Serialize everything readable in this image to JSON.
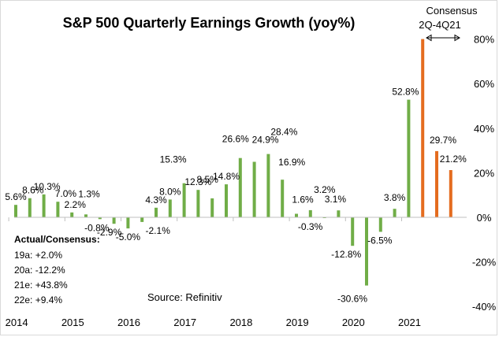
{
  "chart_data": {
    "type": "bar",
    "title": "S&P 500 Quarterly Earnings Growth (yoy%)",
    "xlabel": "",
    "ylabel": "",
    "ylim": [
      -40,
      80
    ],
    "y_ticks": [
      -40,
      -20,
      0,
      20,
      40,
      60,
      80
    ],
    "y_tick_labels": [
      "-40%",
      "-20%",
      "0%",
      "20%",
      "40%",
      "60%",
      "80%"
    ],
    "y_axis_position": "right",
    "grid": false,
    "x_tick_labels": [
      "2014",
      "2015",
      "2016",
      "2017",
      "2018",
      "2019",
      "2020",
      "2021"
    ],
    "series": [
      {
        "name": "Actual",
        "color": "#70ad47",
        "points": [
          {
            "q": "1Q14",
            "value": 5.6,
            "label": "5.6%"
          },
          {
            "q": "2Q14",
            "value": 8.6,
            "label": "8.6%"
          },
          {
            "q": "3Q14",
            "value": 10.3,
            "label": "10.3%"
          },
          {
            "q": "4Q14",
            "value": 7.0,
            "label": "7.0%"
          },
          {
            "q": "1Q15",
            "value": 2.2,
            "label": "2.2%"
          },
          {
            "q": "2Q15",
            "value": 1.3,
            "label": "1.3%"
          },
          {
            "q": "3Q15",
            "value": -0.8,
            "label": "-0.8%"
          },
          {
            "q": "4Q15",
            "value": -2.9,
            "label": "-2.9%"
          },
          {
            "q": "1Q16",
            "value": -5.0,
            "label": "-5.0%"
          },
          {
            "q": "2Q16",
            "value": -2.1,
            "label": "-2.1%"
          },
          {
            "q": "3Q16",
            "value": 4.3,
            "label": "4.3%"
          },
          {
            "q": "4Q16",
            "value": 8.0,
            "label": "8.0%"
          },
          {
            "q": "1Q17",
            "value": 15.3,
            "label": "15.3%"
          },
          {
            "q": "2Q17",
            "value": 12.3,
            "label": "12.3%"
          },
          {
            "q": "3Q17",
            "value": 8.5,
            "label": "8.5%"
          },
          {
            "q": "4Q17",
            "value": 14.8,
            "label": "14.8%"
          },
          {
            "q": "1Q18",
            "value": 26.6,
            "label": "26.6%"
          },
          {
            "q": "2Q18",
            "value": 24.9,
            "label": "24.9%"
          },
          {
            "q": "3Q18",
            "value": 28.4,
            "label": "28.4%"
          },
          {
            "q": "4Q18",
            "value": 16.9,
            "label": "16.9%"
          },
          {
            "q": "1Q19",
            "value": 1.6,
            "label": "1.6%"
          },
          {
            "q": "2Q19",
            "value": 3.2,
            "label": "3.2%"
          },
          {
            "q": "3Q19",
            "value": -0.3,
            "label": "-0.3%"
          },
          {
            "q": "4Q19",
            "value": 3.1,
            "label": "3.1%"
          },
          {
            "q": "1Q20",
            "value": -12.8,
            "label": "-12.8%"
          },
          {
            "q": "2Q20",
            "value": -30.6,
            "label": "-30.6%"
          },
          {
            "q": "3Q20",
            "value": -6.5,
            "label": "-6.5%"
          },
          {
            "q": "4Q20",
            "value": 3.8,
            "label": "3.8%"
          },
          {
            "q": "1Q21",
            "value": 52.8,
            "label": "52.8%"
          }
        ]
      },
      {
        "name": "Consensus",
        "color": "#e46c1f",
        "points": [
          {
            "q": "2Q21",
            "value": 80.0,
            "label": ""
          },
          {
            "q": "3Q21",
            "value": 29.7,
            "label": "29.7%"
          },
          {
            "q": "4Q21",
            "value": 21.2,
            "label": "21.2%"
          }
        ]
      }
    ],
    "annotations": {
      "consensus_header": "Consensus",
      "consensus_range": "2Q-4Q21",
      "actual_consensus_title": "Actual/Consensus:",
      "actual_consensus_rows": [
        "19a:  +2.0%",
        "20a:  -12.2%",
        "21e:  +43.8%",
        "22e:  +9.4%"
      ],
      "source": "Source:   Refinitiv"
    }
  }
}
